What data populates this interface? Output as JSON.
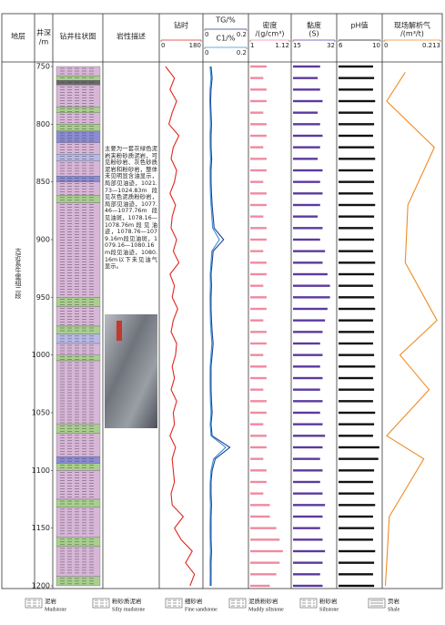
{
  "stratum": {
    "title": "地层",
    "name": "古近系牛堡组二段"
  },
  "depth_axis": {
    "title": "井深",
    "unit": "/m",
    "lim": [
      750,
      1200
    ],
    "ticks": [
      750,
      800,
      850,
      900,
      950,
      1000,
      1050,
      1100,
      1150,
      1200
    ]
  },
  "lithology": {
    "title": "钻井柱状图",
    "intervals": [
      {
        "top": 750,
        "bottom": 758,
        "lithology": 0
      },
      {
        "top": 758,
        "bottom": 762,
        "lithology": 1
      },
      {
        "top": 762,
        "bottom": 766,
        "lithology": 5
      },
      {
        "top": 766,
        "bottom": 785,
        "lithology": 0
      },
      {
        "top": 785,
        "bottom": 790,
        "lithology": 1
      },
      {
        "top": 790,
        "bottom": 800,
        "lithology": 0
      },
      {
        "top": 800,
        "bottom": 806,
        "lithology": 1
      },
      {
        "top": 806,
        "bottom": 816,
        "lithology": 2
      },
      {
        "top": 816,
        "bottom": 826,
        "lithology": 0
      },
      {
        "top": 826,
        "bottom": 832,
        "lithology": 3
      },
      {
        "top": 832,
        "bottom": 845,
        "lithology": 0
      },
      {
        "top": 845,
        "bottom": 850,
        "lithology": 2
      },
      {
        "top": 850,
        "bottom": 862,
        "lithology": 0
      },
      {
        "top": 862,
        "bottom": 868,
        "lithology": 1
      },
      {
        "top": 868,
        "bottom": 950,
        "lithology": 0
      },
      {
        "top": 950,
        "bottom": 958,
        "lithology": 1
      },
      {
        "top": 958,
        "bottom": 975,
        "lithology": 0
      },
      {
        "top": 975,
        "bottom": 982,
        "lithology": 1
      },
      {
        "top": 982,
        "bottom": 990,
        "lithology": 3
      },
      {
        "top": 990,
        "bottom": 1000,
        "lithology": 0
      },
      {
        "top": 1000,
        "bottom": 1005,
        "lithology": 1
      },
      {
        "top": 1005,
        "bottom": 1060,
        "lithology": 0
      },
      {
        "top": 1060,
        "bottom": 1068,
        "lithology": 1
      },
      {
        "top": 1068,
        "bottom": 1088,
        "lithology": 0
      },
      {
        "top": 1088,
        "bottom": 1094,
        "lithology": 2
      },
      {
        "top": 1094,
        "bottom": 1100,
        "lithology": 1
      },
      {
        "top": 1100,
        "bottom": 1125,
        "lithology": 0
      },
      {
        "top": 1125,
        "bottom": 1132,
        "lithology": 1
      },
      {
        "top": 1132,
        "bottom": 1158,
        "lithology": 0
      },
      {
        "top": 1158,
        "bottom": 1166,
        "lithology": 1
      },
      {
        "top": 1166,
        "bottom": 1192,
        "lithology": 0
      },
      {
        "top": 1192,
        "bottom": 1200,
        "lithology": 1
      }
    ]
  },
  "description": {
    "title": "岩性描述",
    "text": "主要为一套灰绿色泥岩夹粉砂质泥岩，可见粉砂岩、灰色砂质泥岩和粉砂岩，整体未见明显含油显示，局部见油迹，1021.73—1024.83m段见灰色泥质粉砂岩，局部见油迹，1077.46—1077.76m段见油斑，1078.16—1078.76m段见油迹，1078.76—1079.16m段见油斑，1079.16—1080.16m段见油迹，1080.16m以下未见油气显示。"
  },
  "legend": [
    {
      "name": "泥岩",
      "name_en": "Mudstone",
      "color": "#d8b6d8"
    },
    {
      "name": "粉砂质泥岩",
      "name_en": "Silty mudstone",
      "color": "#a9cf8e"
    },
    {
      "name": "细砂岩",
      "name_en": "Fine sandstone",
      "color": "#8c8cd6"
    },
    {
      "name": "泥质粉砂岩",
      "name_en": "Muddy siltstone",
      "color": "#b9b9e8"
    },
    {
      "name": "粉砂岩",
      "name_en": "Siltstone",
      "color": "#9fa6cc"
    },
    {
      "name": "页岩",
      "name_en": "Shale",
      "color": "#6a6a6a"
    }
  ],
  "chart_data": [
    {
      "type": "well-log",
      "x": [
        750,
        760,
        770,
        780,
        790,
        800,
        810,
        820,
        830,
        840,
        850,
        860,
        870,
        880,
        890,
        900,
        910,
        920,
        930,
        940,
        950,
        960,
        970,
        980,
        990,
        1000,
        1010,
        1020,
        1030,
        1040,
        1050,
        1060,
        1070,
        1080,
        1090,
        1100,
        1110,
        1120,
        1130,
        1140,
        1150,
        1160,
        1170,
        1180,
        1190,
        1200
      ],
      "series": [
        {
          "name": "钻时",
          "kind": "line",
          "color": "#e0261f",
          "lim": [
            0,
            180
          ],
          "ticks": [
            0,
            180
          ],
          "values": [
            20,
            60,
            40,
            70,
            50,
            35,
            80,
            55,
            45,
            70,
            60,
            40,
            65,
            50,
            45,
            70,
            55,
            80,
            40,
            60,
            50,
            75,
            55,
            45,
            70,
            65,
            50,
            60,
            45,
            70,
            55,
            60,
            40,
            65,
            50,
            55,
            60,
            45,
            50,
            100,
            60,
            90,
            140,
            110,
            150,
            130
          ]
        },
        {
          "name": "TG/%",
          "kind": "line",
          "color": "#1f3f8f",
          "lim": [
            0,
            0.2
          ],
          "ticks": [
            0,
            0.2
          ],
          "values": [
            0.03,
            0.035,
            0.03,
            0.028,
            0.03,
            0.032,
            0.03,
            0.03,
            0.033,
            0.03,
            0.03,
            0.032,
            0.035,
            0.04,
            0.045,
            0.09,
            0.04,
            0.035,
            0.03,
            0.032,
            0.03,
            0.03,
            0.032,
            0.035,
            0.04,
            0.035,
            0.03,
            0.03,
            0.03,
            0.032,
            0.035,
            0.03,
            0.035,
            0.12,
            0.05,
            0.035,
            0.03,
            0.03,
            0.032,
            0.03,
            0.03,
            0.03,
            0.032,
            0.03,
            0.03,
            0.03
          ]
        },
        {
          "name": "C1/%",
          "kind": "line",
          "color": "#3a8fd6",
          "lim": [
            0,
            0.2
          ],
          "ticks": [
            0,
            0.2
          ],
          "values": [
            0.025,
            0.03,
            0.025,
            0.024,
            0.026,
            0.027,
            0.025,
            0.026,
            0.028,
            0.025,
            0.026,
            0.027,
            0.03,
            0.034,
            0.038,
            0.07,
            0.034,
            0.03,
            0.026,
            0.027,
            0.025,
            0.026,
            0.027,
            0.03,
            0.034,
            0.03,
            0.026,
            0.025,
            0.026,
            0.027,
            0.03,
            0.026,
            0.03,
            0.1,
            0.042,
            0.03,
            0.026,
            0.025,
            0.027,
            0.026,
            0.025,
            0.026,
            0.027,
            0.025,
            0.026,
            0.025
          ]
        },
        {
          "name": "密度",
          "unit": "/(g/cm³)",
          "kind": "bar",
          "color": "#f08aa0",
          "lim": [
            1,
            1.12
          ],
          "ticks": [
            1,
            1.12
          ],
          "values": [
            1.05,
            1.04,
            1.05,
            1.05,
            1.04,
            1.05,
            1.05,
            1.04,
            1.05,
            1.05,
            1.04,
            1.05,
            1.05,
            1.04,
            1.05,
            1.05,
            1.04,
            1.05,
            1.05,
            1.04,
            1.05,
            1.05,
            1.04,
            1.05,
            1.05,
            1.04,
            1.05,
            1.05,
            1.04,
            1.05,
            1.05,
            1.04,
            1.05,
            1.05,
            1.04,
            1.05,
            1.05,
            1.04,
            1.06,
            1.06,
            1.08,
            1.09,
            1.1,
            1.09,
            1.08,
            1.06
          ]
        },
        {
          "name": "黏度",
          "unit": "(S)",
          "kind": "bar",
          "color": "#5b3a9e",
          "lim": [
            15,
            32
          ],
          "ticks": [
            15,
            32
          ],
          "values": [
            26,
            25,
            26,
            27,
            25,
            26,
            27,
            26,
            25,
            27,
            26,
            27,
            26,
            25,
            27,
            26,
            28,
            27,
            29,
            30,
            30,
            29,
            28,
            27,
            26,
            27,
            26,
            27,
            26,
            27,
            26,
            27,
            28,
            27,
            26,
            27,
            26,
            27,
            28,
            27,
            26,
            27,
            28,
            27,
            26,
            27
          ]
        },
        {
          "name": "pH值",
          "kind": "bar",
          "color": "#111111",
          "lim": [
            6,
            10
          ],
          "ticks": [
            6,
            10
          ],
          "values": [
            9.3,
            9.4,
            9.3,
            9.5,
            9.3,
            9.4,
            9.3,
            9.4,
            9.5,
            9.3,
            9.4,
            9.3,
            9.5,
            9.4,
            9.3,
            9.4,
            9.3,
            9.5,
            9.4,
            9.3,
            9.4,
            9.5,
            9.3,
            9.4,
            9.3,
            9.4,
            9.5,
            9.3,
            9.4,
            9.3,
            9.5,
            9.4,
            9.3,
            9.9,
            9.8,
            9.4,
            9.3,
            9.4,
            9.5,
            9.3,
            9.4,
            9.3,
            9.5,
            9.4,
            9.3,
            9.4
          ]
        }
      ]
    },
    {
      "type": "line",
      "name": "现场解析气",
      "unit": "/(m³/t)",
      "color": "#f08a24",
      "lim": [
        0,
        0.213
      ],
      "ticks": [
        0,
        0.213
      ],
      "x": [
        755,
        780,
        820,
        870,
        920,
        970,
        1000,
        1030,
        1070,
        1090,
        1140,
        1200
      ],
      "values": [
        0.08,
        0.01,
        0.19,
        0.09,
        0.08,
        0.2,
        0.06,
        0.17,
        0.01,
        0.15,
        0.02,
        0.005
      ]
    }
  ]
}
